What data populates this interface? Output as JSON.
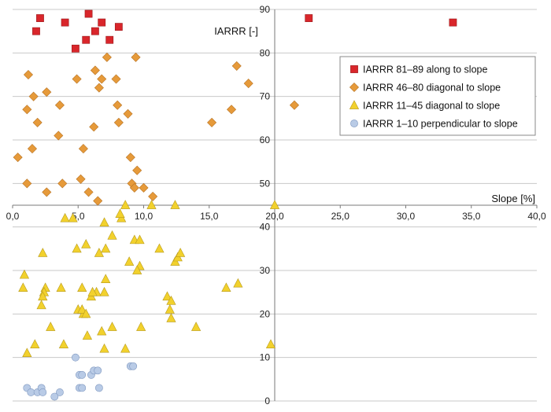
{
  "chart_data": {
    "type": "scatter",
    "title": "",
    "xlabel": "Slope [%]",
    "ylabel": "IARRR [-]",
    "xlim": [
      0,
      40
    ],
    "ylim": [
      0,
      90
    ],
    "x_ticks": [
      "0,0",
      "5,0",
      "10,0",
      "15,0",
      "20,0",
      "25,0",
      "30,0",
      "35,0",
      "40,0"
    ],
    "y_ticks": [
      "0",
      "10",
      "20",
      "30",
      "40",
      "50",
      "60",
      "70",
      "80",
      "90"
    ],
    "grid": true,
    "legend_position": "right",
    "colors": {
      "red": "#d9262b",
      "orange": "#e69a3a",
      "yellow": "#f2d12d",
      "blue": "#b9cbe6"
    },
    "series": [
      {
        "name": "IARRR 81–89 along to slope",
        "marker": "square",
        "color_key": "red",
        "points": [
          [
            2.1,
            88
          ],
          [
            1.8,
            85
          ],
          [
            4.0,
            87
          ],
          [
            5.8,
            89
          ],
          [
            6.3,
            85
          ],
          [
            6.8,
            87
          ],
          [
            5.6,
            83
          ],
          [
            7.4,
            83
          ],
          [
            8.1,
            86
          ],
          [
            4.8,
            81
          ],
          [
            22.6,
            88
          ],
          [
            33.6,
            87
          ]
        ]
      },
      {
        "name": "IARRR 46–80 diagonal to slope",
        "marker": "diamond",
        "color_key": "orange",
        "points": [
          [
            1.2,
            75
          ],
          [
            1.6,
            70
          ],
          [
            2.6,
            71
          ],
          [
            1.1,
            67
          ],
          [
            1.9,
            64
          ],
          [
            3.6,
            68
          ],
          [
            3.5,
            61
          ],
          [
            1.5,
            58
          ],
          [
            0.4,
            56
          ],
          [
            1.1,
            50
          ],
          [
            2.6,
            48
          ],
          [
            3.8,
            50
          ],
          [
            5.2,
            51
          ],
          [
            5.8,
            48
          ],
          [
            6.5,
            46
          ],
          [
            5.4,
            58
          ],
          [
            6.2,
            63
          ],
          [
            6.6,
            72
          ],
          [
            6.8,
            74
          ],
          [
            7.2,
            79
          ],
          [
            6.3,
            76
          ],
          [
            4.9,
            74
          ],
          [
            7.9,
            74
          ],
          [
            8.0,
            68
          ],
          [
            8.1,
            64
          ],
          [
            8.8,
            66
          ],
          [
            9.0,
            56
          ],
          [
            9.5,
            53
          ],
          [
            9.1,
            50
          ],
          [
            9.3,
            49
          ],
          [
            10.0,
            49
          ],
          [
            10.7,
            47
          ],
          [
            9.4,
            79
          ],
          [
            17.1,
            77
          ],
          [
            18.0,
            73
          ],
          [
            15.2,
            64
          ],
          [
            16.7,
            67
          ],
          [
            21.5,
            68
          ]
        ]
      },
      {
        "name": "IARRR 11–45 diagonal to slope",
        "marker": "triangle",
        "color_key": "yellow",
        "points": [
          [
            4.0,
            42
          ],
          [
            4.6,
            42
          ],
          [
            7.0,
            41
          ],
          [
            8.3,
            42
          ],
          [
            8.6,
            45
          ],
          [
            10.6,
            45
          ],
          [
            12.4,
            45
          ],
          [
            20.0,
            45
          ],
          [
            8.2,
            43
          ],
          [
            7.6,
            38
          ],
          [
            4.9,
            35
          ],
          [
            5.6,
            36
          ],
          [
            7.1,
            35
          ],
          [
            6.6,
            34
          ],
          [
            8.9,
            32
          ],
          [
            9.3,
            37
          ],
          [
            9.7,
            37
          ],
          [
            11.2,
            35
          ],
          [
            12.4,
            32
          ],
          [
            12.6,
            33
          ],
          [
            12.8,
            34
          ],
          [
            9.7,
            31
          ],
          [
            9.5,
            30
          ],
          [
            2.3,
            34
          ],
          [
            0.9,
            29
          ],
          [
            0.8,
            26
          ],
          [
            2.5,
            26
          ],
          [
            2.4,
            25
          ],
          [
            2.3,
            24
          ],
          [
            2.2,
            22
          ],
          [
            3.7,
            26
          ],
          [
            5.3,
            26
          ],
          [
            6.0,
            24
          ],
          [
            6.4,
            25
          ],
          [
            6.1,
            25
          ],
          [
            7.0,
            25
          ],
          [
            7.1,
            28
          ],
          [
            11.8,
            24
          ],
          [
            12.1,
            23
          ],
          [
            12.0,
            21
          ],
          [
            12.1,
            19
          ],
          [
            14.0,
            17
          ],
          [
            16.3,
            26
          ],
          [
            17.2,
            27
          ],
          [
            5.0,
            21
          ],
          [
            5.4,
            20
          ],
          [
            5.3,
            21
          ],
          [
            5.6,
            20
          ],
          [
            2.9,
            17
          ],
          [
            6.8,
            16
          ],
          [
            7.6,
            17
          ],
          [
            9.8,
            17
          ],
          [
            1.7,
            13
          ],
          [
            3.9,
            13
          ],
          [
            5.7,
            15
          ],
          [
            7.0,
            12
          ],
          [
            8.6,
            12
          ],
          [
            1.1,
            11
          ],
          [
            19.7,
            13
          ]
        ]
      },
      {
        "name": "IARRR 1–10 perpendicular to slope",
        "marker": "circle",
        "color_key": "blue",
        "points": [
          [
            4.8,
            10
          ],
          [
            9.0,
            8
          ],
          [
            9.2,
            8
          ],
          [
            5.1,
            6
          ],
          [
            5.3,
            6
          ],
          [
            6.0,
            6
          ],
          [
            6.2,
            7
          ],
          [
            6.5,
            7
          ],
          [
            1.1,
            3
          ],
          [
            1.4,
            2
          ],
          [
            1.9,
            2
          ],
          [
            2.2,
            3
          ],
          [
            2.3,
            2
          ],
          [
            3.6,
            2
          ],
          [
            3.2,
            1
          ],
          [
            5.1,
            3
          ],
          [
            5.3,
            3
          ],
          [
            6.6,
            3
          ]
        ]
      }
    ]
  }
}
